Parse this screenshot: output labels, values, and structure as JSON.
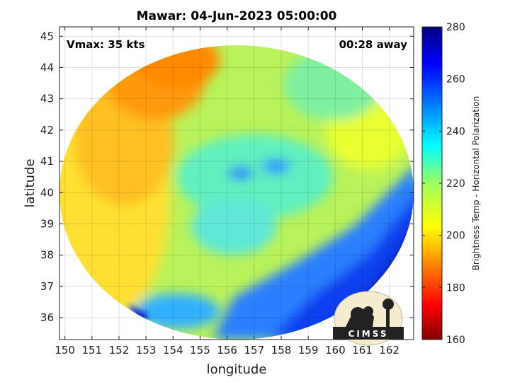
{
  "chart_data": {
    "type": "heatmap",
    "title": "Mawar: 04-Jun-2023 05:00:00",
    "xlabel": "longitude",
    "ylabel": "latitude",
    "xlim": [
      149.8,
      162.9
    ],
    "ylim": [
      35.3,
      45.3
    ],
    "x_ticks": [
      150,
      151,
      152,
      153,
      154,
      155,
      156,
      157,
      158,
      159,
      160,
      161,
      162
    ],
    "y_ticks": [
      36,
      37,
      38,
      39,
      40,
      41,
      42,
      43,
      44,
      45
    ],
    "grid": true,
    "annotations": {
      "left": "Vmax: 35 kts",
      "right": "00:28 away"
    },
    "colorbar": {
      "label": "Brightness Temp - Horizontal Polarization",
      "range": [
        160,
        280
      ],
      "ticks": [
        160,
        180,
        200,
        220,
        240,
        260,
        280
      ],
      "colormap": "jet"
    },
    "swath": {
      "center": [
        156.4,
        40.3
      ],
      "extent": "circular footprint",
      "values_range": [
        180,
        270
      ]
    },
    "logo": "CIMSS"
  },
  "colors": {
    "jet_stops": [
      "#7f0000",
      "#ff0000",
      "#ffff00",
      "#00ffff",
      "#0000ff",
      "#00007f"
    ],
    "grid": "#dddddd",
    "axes": "#222222"
  }
}
